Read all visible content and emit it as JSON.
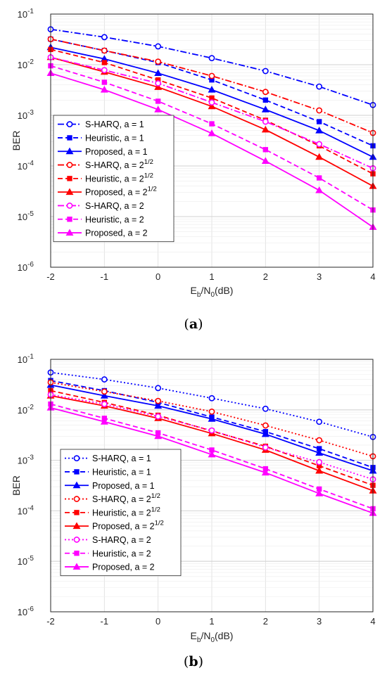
{
  "chart_data": [
    {
      "type": "line",
      "caption_prefix": "(",
      "caption_letter": "a",
      "caption_suffix": ")",
      "xlabel_main": "E",
      "xlabel_sub1": "b",
      "xlabel_mid": "/N",
      "xlabel_sub2": "0",
      "xlabel_end": "(dB)",
      "ylabel": "BER",
      "x": [
        -2,
        -1,
        0,
        1,
        2,
        3,
        4
      ],
      "xlim": [
        -2,
        4
      ],
      "ylim": [
        1e-06,
        0.1
      ],
      "yscale": "log",
      "grid": true,
      "legend_position": "center-left",
      "xticks": [
        "-2",
        "-1",
        "0",
        "1",
        "2",
        "3",
        "4"
      ],
      "yticks": [
        {
          "base": "10",
          "exp": "-6"
        },
        {
          "base": "10",
          "exp": "-5"
        },
        {
          "base": "10",
          "exp": "-4"
        },
        {
          "base": "10",
          "exp": "-3"
        },
        {
          "base": "10",
          "exp": "-2"
        },
        {
          "base": "10",
          "exp": "-1"
        }
      ],
      "series": [
        {
          "label": "S-HARQ, a = 1",
          "label_sup": "",
          "color": "#0000FF",
          "marker": "circle",
          "line": "dashdot",
          "values": [
            0.05,
            0.035,
            0.023,
            0.0135,
            0.0075,
            0.0037,
            0.0016
          ]
        },
        {
          "label": "Heuristic, a = 1",
          "label_sup": "",
          "color": "#0000FF",
          "marker": "square",
          "line": "dashed",
          "values": [
            0.032,
            0.019,
            0.011,
            0.005,
            0.002,
            0.00075,
            0.00025
          ]
        },
        {
          "label": "Proposed, a = 1",
          "label_sup": "",
          "color": "#0000FF",
          "marker": "triangle",
          "line": "solid",
          "values": [
            0.022,
            0.013,
            0.0068,
            0.0032,
            0.0013,
            0.0005,
            0.00015
          ]
        },
        {
          "label": "S-HARQ, a = 2",
          "label_sup": "1/2",
          "color": "#FF0000",
          "marker": "circle",
          "line": "dashdot",
          "values": [
            0.032,
            0.019,
            0.0115,
            0.006,
            0.0029,
            0.00125,
            0.00045
          ]
        },
        {
          "label": "Heuristic, a = 2",
          "label_sup": "1/2",
          "color": "#FF0000",
          "marker": "square",
          "line": "dashed",
          "values": [
            0.02,
            0.011,
            0.005,
            0.0022,
            0.0008,
            0.00025,
            7e-05
          ]
        },
        {
          "label": "Proposed, a = 2",
          "label_sup": "1/2",
          "color": "#FF0000",
          "marker": "triangle",
          "line": "solid",
          "values": [
            0.014,
            0.0072,
            0.0036,
            0.0015,
            0.00052,
            0.00015,
            4e-05
          ]
        },
        {
          "label": "S-HARQ, a = 2",
          "label_sup": "",
          "color": "#FF00FF",
          "marker": "circle",
          "line": "dashdot",
          "values": [
            0.014,
            0.0078,
            0.0043,
            0.0018,
            0.00075,
            0.00027,
            9e-05
          ]
        },
        {
          "label": "Heuristic, a = 2",
          "label_sup": "",
          "color": "#FF00FF",
          "marker": "square",
          "line": "dashed",
          "values": [
            0.0095,
            0.0045,
            0.0019,
            0.00068,
            0.00021,
            5.8e-05,
            1.35e-05
          ]
        },
        {
          "label": "Proposed, a = 2",
          "label_sup": "",
          "color": "#FF00FF",
          "marker": "triangle",
          "line": "solid",
          "values": [
            0.0068,
            0.0032,
            0.0013,
            0.00044,
            0.000125,
            3.3e-05,
            6.2e-06
          ]
        }
      ]
    },
    {
      "type": "line",
      "caption_prefix": "(",
      "caption_letter": "b",
      "caption_suffix": ")",
      "xlabel_main": "E",
      "xlabel_sub1": "b",
      "xlabel_mid": "/N",
      "xlabel_sub2": "0",
      "xlabel_end": "(dB)",
      "ylabel": "BER",
      "x": [
        -2,
        -1,
        0,
        1,
        2,
        3,
        4
      ],
      "xlim": [
        -2,
        4
      ],
      "ylim": [
        1e-06,
        0.1
      ],
      "yscale": "log",
      "grid": true,
      "legend_position": "bottom-left",
      "xticks": [
        "-2",
        "-1",
        "0",
        "1",
        "2",
        "3",
        "4"
      ],
      "yticks": [
        {
          "base": "10",
          "exp": "-6"
        },
        {
          "base": "10",
          "exp": "-5"
        },
        {
          "base": "10",
          "exp": "-4"
        },
        {
          "base": "10",
          "exp": "-3"
        },
        {
          "base": "10",
          "exp": "-2"
        },
        {
          "base": "10",
          "exp": "-1"
        }
      ],
      "series": [
        {
          "label": "S-HARQ, a = 1",
          "label_sup": "",
          "color": "#0000FF",
          "marker": "circle",
          "line": "dotted",
          "values": [
            0.055,
            0.04,
            0.027,
            0.017,
            0.0105,
            0.0058,
            0.0029
          ]
        },
        {
          "label": "Heuristic, a = 1",
          "label_sup": "",
          "color": "#0000FF",
          "marker": "square",
          "line": "dashed",
          "values": [
            0.038,
            0.024,
            0.014,
            0.0072,
            0.0037,
            0.0017,
            0.00072
          ]
        },
        {
          "label": "Proposed, a = 1",
          "label_sup": "",
          "color": "#0000FF",
          "marker": "triangle",
          "line": "solid",
          "values": [
            0.031,
            0.019,
            0.012,
            0.0066,
            0.0033,
            0.0014,
            0.00062
          ]
        },
        {
          "label": "S-HARQ, a = 2",
          "label_sup": "1/2",
          "color": "#FF0000",
          "marker": "circle",
          "line": "dotted",
          "values": [
            0.035,
            0.023,
            0.015,
            0.0092,
            0.0049,
            0.0025,
            0.0012
          ]
        },
        {
          "label": "Heuristic, a = 2",
          "label_sup": "1/2",
          "color": "#FF0000",
          "marker": "square",
          "line": "dashed",
          "values": [
            0.024,
            0.014,
            0.0078,
            0.0038,
            0.0019,
            0.00078,
            0.00032
          ]
        },
        {
          "label": "Proposed, a = 2",
          "label_sup": "1/2",
          "color": "#FF0000",
          "marker": "triangle",
          "line": "solid",
          "values": [
            0.019,
            0.012,
            0.0068,
            0.0034,
            0.0016,
            0.00062,
            0.00025
          ]
        },
        {
          "label": "S-HARQ, a = 2",
          "label_sup": "",
          "color": "#FF00FF",
          "marker": "circle",
          "line": "dotted",
          "values": [
            0.02,
            0.013,
            0.0074,
            0.0039,
            0.0018,
            0.00092,
            0.00042
          ]
        },
        {
          "label": "Heuristic, a = 2",
          "label_sup": "",
          "color": "#FF00FF",
          "marker": "square",
          "line": "dashed",
          "values": [
            0.013,
            0.0068,
            0.0035,
            0.0016,
            0.00068,
            0.00027,
            0.00011
          ]
        },
        {
          "label": "Proposed, a = 2",
          "label_sup": "",
          "color": "#FF00FF",
          "marker": "triangle",
          "line": "solid",
          "values": [
            0.011,
            0.0058,
            0.003,
            0.0013,
            0.00057,
            0.00022,
            9e-05
          ]
        }
      ]
    }
  ]
}
